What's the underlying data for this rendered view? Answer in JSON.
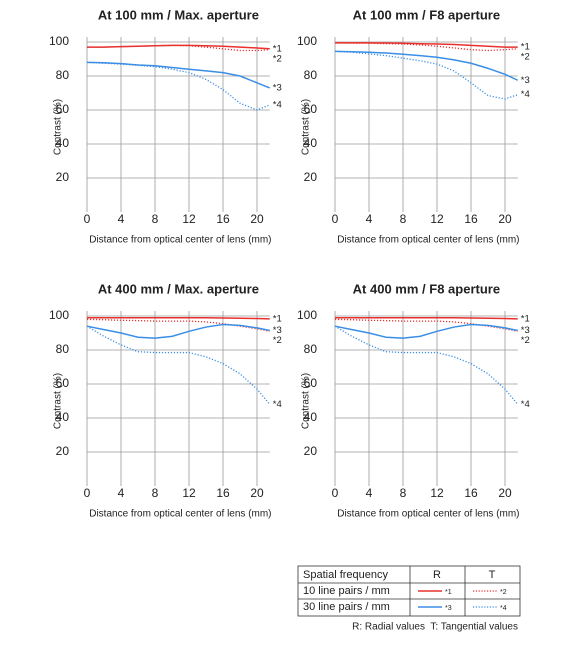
{
  "chart_data": [
    {
      "type": "line",
      "title": "At 100 mm / Max. aperture",
      "x_label": "Distance from optical center of lens (mm)",
      "y_label": "Contrast (%)",
      "x": [
        0,
        2,
        4,
        6,
        8,
        10,
        12,
        14,
        16,
        18,
        20,
        21.5
      ],
      "xlim": [
        0,
        21.5
      ],
      "ylim": [
        0,
        100
      ],
      "xticks": [
        0,
        4,
        8,
        12,
        16,
        20
      ],
      "yticks": [
        20,
        40,
        60,
        80,
        100
      ],
      "grid": true,
      "series": [
        {
          "name": "*1",
          "color": "#e8312f",
          "style": "solid",
          "values": [
            97,
            97,
            97.3,
            97.5,
            97.8,
            98,
            98,
            97.8,
            97.5,
            97,
            96.5,
            96
          ]
        },
        {
          "name": "*2",
          "color": "#e8312f",
          "style": "dotted",
          "values": [
            97,
            97,
            97.3,
            97.5,
            97.8,
            98,
            97.8,
            97,
            96,
            95,
            95,
            95.5
          ]
        },
        {
          "name": "*3",
          "color": "#3a8ee6",
          "style": "solid",
          "values": [
            88,
            87.8,
            87.3,
            86.5,
            86,
            85,
            84,
            83,
            82,
            80,
            76,
            73
          ]
        },
        {
          "name": "*4",
          "color": "#3a8ee6",
          "style": "dotted",
          "values": [
            88,
            87.5,
            87,
            86.3,
            85.5,
            84,
            82,
            78,
            72,
            64,
            60,
            63
          ]
        }
      ]
    },
    {
      "type": "line",
      "title": "At 100 mm / F8 aperture",
      "x_label": "Distance from optical center of lens (mm)",
      "y_label": "Contrast (%)",
      "x": [
        0,
        2,
        4,
        6,
        8,
        10,
        12,
        14,
        16,
        18,
        20,
        21.5
      ],
      "xlim": [
        0,
        21.5
      ],
      "ylim": [
        0,
        100
      ],
      "xticks": [
        0,
        4,
        8,
        12,
        16,
        20
      ],
      "yticks": [
        20,
        40,
        60,
        80,
        100
      ],
      "grid": true,
      "series": [
        {
          "name": "*1",
          "color": "#e8312f",
          "style": "solid",
          "values": [
            99.5,
            99.5,
            99.5,
            99.4,
            99.3,
            99,
            98.8,
            98.5,
            98,
            97.5,
            97,
            97
          ]
        },
        {
          "name": "*2",
          "color": "#e8312f",
          "style": "dotted",
          "values": [
            99.5,
            99.4,
            99.3,
            99,
            98.8,
            98.3,
            97.5,
            96.5,
            95.5,
            95,
            95.5,
            96
          ]
        },
        {
          "name": "*3",
          "color": "#3a8ee6",
          "style": "solid",
          "values": [
            94.5,
            94.3,
            94,
            93.5,
            92.8,
            92,
            91,
            89.5,
            87.5,
            84.5,
            81,
            77.5
          ]
        },
        {
          "name": "*4",
          "color": "#3a8ee6",
          "style": "dotted",
          "values": [
            94.5,
            94,
            93,
            92,
            90.5,
            89,
            87,
            83,
            76,
            68.5,
            66.5,
            69
          ]
        }
      ]
    },
    {
      "type": "line",
      "title": "At 400 mm / Max. aperture",
      "x_label": "Distance from optical center of lens (mm)",
      "y_label": "Contrast (%)",
      "x": [
        0,
        2,
        4,
        6,
        8,
        10,
        12,
        14,
        16,
        18,
        20,
        21.5
      ],
      "xlim": [
        0,
        21.5
      ],
      "ylim": [
        0,
        100
      ],
      "xticks": [
        0,
        4,
        8,
        12,
        16,
        20
      ],
      "yticks": [
        20,
        40,
        60,
        80,
        100
      ],
      "grid": true,
      "series": [
        {
          "name": "*1",
          "color": "#e8312f",
          "style": "solid",
          "values": [
            99,
            99,
            99,
            99,
            99,
            99,
            99,
            99,
            98.8,
            98.7,
            98.5,
            98.3
          ]
        },
        {
          "name": "*2",
          "color": "#e8312f",
          "style": "dotted",
          "values": [
            98,
            97.8,
            97.5,
            97.3,
            97,
            97,
            97,
            96.5,
            95.5,
            94,
            92.5,
            91
          ]
        },
        {
          "name": "*3",
          "color": "#3a8ee6",
          "style": "solid",
          "values": [
            94,
            92,
            90,
            87.5,
            87,
            88,
            91,
            93.5,
            95,
            94.5,
            93,
            91.5
          ]
        },
        {
          "name": "*4",
          "color": "#3a8ee6",
          "style": "dotted",
          "values": [
            94,
            88,
            83,
            79,
            78.5,
            78.5,
            78.5,
            76,
            72,
            66,
            57,
            48
          ]
        }
      ]
    },
    {
      "type": "line",
      "title": "At 400 mm / F8 aperture",
      "x_label": "Distance from optical center of lens (mm)",
      "y_label": "Contrast (%)",
      "x": [
        0,
        2,
        4,
        6,
        8,
        10,
        12,
        14,
        16,
        18,
        20,
        21.5
      ],
      "xlim": [
        0,
        21.5
      ],
      "ylim": [
        0,
        100
      ],
      "xticks": [
        0,
        4,
        8,
        12,
        16,
        20
      ],
      "yticks": [
        20,
        40,
        60,
        80,
        100
      ],
      "grid": true,
      "series": [
        {
          "name": "*1",
          "color": "#e8312f",
          "style": "solid",
          "values": [
            99,
            99,
            99,
            99,
            99,
            99,
            99,
            99,
            98.8,
            98.7,
            98.5,
            98.3
          ]
        },
        {
          "name": "*2",
          "color": "#e8312f",
          "style": "dotted",
          "values": [
            98,
            97.8,
            97.5,
            97.3,
            97,
            97,
            97,
            96.5,
            95.5,
            94,
            92.5,
            91
          ]
        },
        {
          "name": "*3",
          "color": "#3a8ee6",
          "style": "solid",
          "values": [
            94,
            92,
            90,
            87.5,
            87,
            88,
            91,
            93.5,
            95,
            94.5,
            93,
            91.5
          ]
        },
        {
          "name": "*4",
          "color": "#3a8ee6",
          "style": "dotted",
          "values": [
            94,
            88,
            83,
            79,
            78.5,
            78.5,
            78.5,
            76,
            72,
            66,
            57,
            48
          ]
        }
      ]
    }
  ],
  "legend_table": {
    "header": [
      "Spatial frequency",
      "R",
      "T"
    ],
    "rows": [
      [
        "10 line pairs / mm",
        "*1",
        "*2"
      ],
      [
        "30 line pairs / mm",
        "*3",
        "*4"
      ]
    ]
  },
  "note": "R: Radial values  T: Tangential values"
}
